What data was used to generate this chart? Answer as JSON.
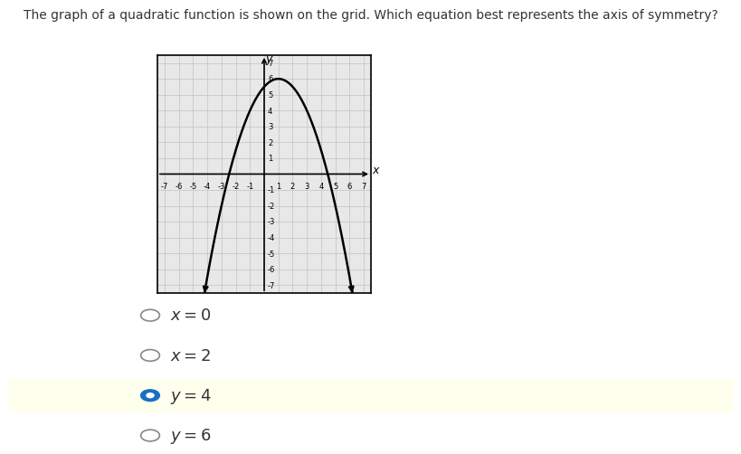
{
  "title": "The graph of a quadratic function is shown on the grid. Which equation best represents the axis of symmetry?",
  "title_fontsize": 10,
  "xlim": [
    -7.5,
    7.5
  ],
  "ylim": [
    -7.5,
    7.5
  ],
  "parabola_vertex_x": 1,
  "parabola_vertex_y": 6,
  "parabola_a": -0.5,
  "curve_color": "#000000",
  "grid_color": "#c8c8c8",
  "bg_color": "#e8e8e8",
  "border_color": "#000000",
  "options": [
    {
      "label": "x = 0",
      "selected": false
    },
    {
      "label": "x = 2",
      "selected": false
    },
    {
      "label": "y = 4",
      "selected": true
    },
    {
      "label": "y = 6",
      "selected": false
    }
  ],
  "selected_bg": "#ffffee",
  "option_fontsize": 13,
  "radio_color_selected": "#1a6fc4",
  "radio_color_unselected": "#888888"
}
